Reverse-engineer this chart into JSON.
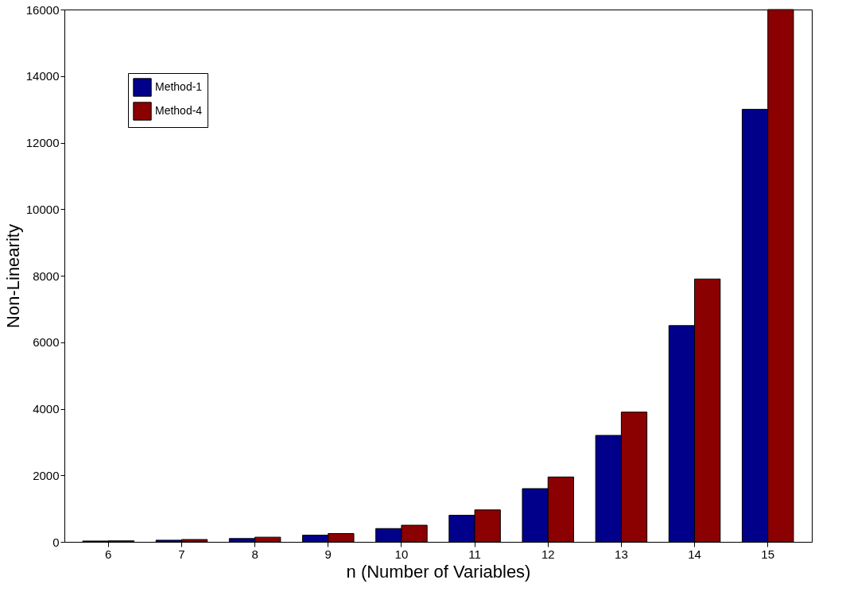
{
  "chart_data": {
    "type": "bar",
    "xlabel": "n (Number of Variables)",
    "ylabel": "Non-Linearity",
    "categories": [
      "6",
      "7",
      "8",
      "9",
      "10",
      "11",
      "12",
      "13",
      "14",
      "15"
    ],
    "series": [
      {
        "name": "Method-1",
        "color": "#00008b",
        "values": [
          25,
          50,
          100,
          200,
          400,
          800,
          1600,
          3200,
          6500,
          13000
        ]
      },
      {
        "name": "Method-4",
        "color": "#8b0000",
        "values": [
          30,
          70,
          140,
          250,
          500,
          960,
          1950,
          3900,
          7900,
          16000
        ]
      }
    ],
    "ylim": [
      0,
      16000
    ],
    "yticks": [
      0,
      2000,
      4000,
      6000,
      8000,
      10000,
      12000,
      14000,
      16000
    ],
    "grid": false,
    "legend": "top left"
  }
}
